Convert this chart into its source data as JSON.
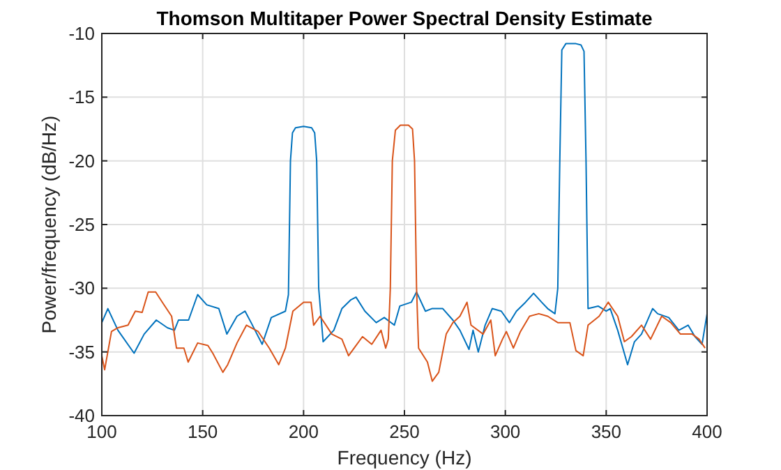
{
  "chart_data": {
    "type": "line",
    "title": "Thomson Multitaper Power Spectral Density Estimate",
    "xlabel": "Frequency (Hz)",
    "ylabel": "Power/frequency (dB/Hz)",
    "xlim": [
      100,
      400
    ],
    "xticks": [
      100,
      150,
      200,
      250,
      300,
      350,
      400
    ],
    "ylim": [
      -40,
      -10
    ],
    "yticks": [
      -40,
      -35,
      -30,
      -25,
      -20,
      -15,
      -10
    ],
    "grid": true,
    "line_style": "solid",
    "series": [
      {
        "color": "#0072bd",
        "x": [
          100,
          103,
          108,
          116,
          121,
          127,
          132.5,
          136,
          138,
          143,
          147.5,
          152,
          158,
          162,
          167,
          171,
          174,
          179.5,
          184,
          191,
          192.5,
          193.5,
          194.5,
          196,
          200,
          204,
          205.5,
          206.5,
          207.5,
          209.7,
          215,
          219,
          223.5,
          226,
          230.4,
          236,
          240,
          245,
          247.7,
          253.4,
          256,
          260.4,
          263.6,
          269,
          274,
          277.5,
          282,
          284,
          286.6,
          290,
          293.5,
          298,
          302,
          305.5,
          310,
          314,
          318,
          321,
          324.6,
          326,
          327,
          328,
          330,
          335,
          337.5,
          339,
          340,
          341,
          346,
          350,
          352,
          355.7,
          360.6,
          364,
          367.5,
          373,
          375.5,
          381,
          386,
          390.6,
          394,
          397.5,
          400
        ],
        "values": [
          -32.7,
          -31.6,
          -33.3,
          -35.1,
          -33.6,
          -32.5,
          -33.1,
          -33.3,
          -32.5,
          -32.5,
          -30.5,
          -31.3,
          -31.6,
          -33.6,
          -32.2,
          -31.8,
          -32.7,
          -34.4,
          -32.3,
          -31.8,
          -30.5,
          -20,
          -17.8,
          -17.4,
          -17.3,
          -17.4,
          -17.8,
          -20,
          -30,
          -34.2,
          -33.3,
          -31.6,
          -30.9,
          -30.7,
          -31.8,
          -32.7,
          -32.3,
          -32.9,
          -31.4,
          -31.1,
          -30.3,
          -31.8,
          -31.6,
          -31.6,
          -32.5,
          -33.3,
          -34.8,
          -33.3,
          -35,
          -32.9,
          -31.6,
          -31.8,
          -32.7,
          -31.8,
          -31.1,
          -30.4,
          -31.1,
          -31.6,
          -32,
          -30,
          -20,
          -11.3,
          -10.8,
          -10.8,
          -10.9,
          -11.4,
          -20,
          -31.6,
          -31.4,
          -31.8,
          -31.6,
          -33.3,
          -36,
          -34.2,
          -33.6,
          -31.6,
          -32,
          -32.3,
          -33.3,
          -32.9,
          -33.8,
          -34.4,
          -32
        ]
      },
      {
        "color": "#d95319",
        "x": [
          100,
          101.4,
          104.8,
          108,
          113,
          116.6,
          120,
          123,
          126.7,
          130,
          134.6,
          137,
          140.7,
          142.8,
          147.5,
          152.6,
          155,
          160,
          162.4,
          167,
          171.7,
          177.5,
          183,
          187.7,
          191,
          194.7,
          200,
          203.7,
          205,
          208.2,
          214,
          219,
          222.3,
          229.2,
          233.8,
          238.4,
          240.7,
          242,
          243,
          244,
          245.5,
          248,
          252,
          254,
          255,
          256,
          257,
          261.4,
          263.8,
          267,
          270.7,
          274,
          277.5,
          281,
          283,
          289,
          292.8,
          295,
          298.6,
          300.5,
          304,
          307.5,
          312,
          316.6,
          321,
          326,
          332,
          335,
          338.6,
          341,
          346.5,
          351,
          355.7,
          359,
          362.5,
          367.5,
          372,
          377.5,
          382,
          386.8,
          392.6,
          396,
          399
        ],
        "values": [
          -35.3,
          -36.4,
          -33.4,
          -33.1,
          -32.9,
          -31.8,
          -31.9,
          -30.3,
          -30.3,
          -31.1,
          -32.2,
          -34.7,
          -34.7,
          -35.8,
          -34.3,
          -34.5,
          -35.1,
          -36.6,
          -36,
          -34.3,
          -32.9,
          -33.4,
          -34.7,
          -36,
          -34.7,
          -31.8,
          -31.1,
          -31.1,
          -32.9,
          -32.2,
          -33.6,
          -34,
          -35.3,
          -33.8,
          -34.4,
          -33.3,
          -34.7,
          -34,
          -30,
          -20,
          -17.6,
          -17.2,
          -17.2,
          -17.5,
          -20,
          -30,
          -34.7,
          -35.8,
          -37.3,
          -36.6,
          -33.6,
          -32.7,
          -32.2,
          -31.1,
          -32.9,
          -33.6,
          -32.5,
          -35.3,
          -34,
          -33.4,
          -34.7,
          -33.4,
          -32.2,
          -32,
          -32.2,
          -32.7,
          -32.7,
          -34.9,
          -35.3,
          -32.9,
          -32.2,
          -31.1,
          -32.2,
          -34.2,
          -33.8,
          -32.9,
          -34,
          -32.2,
          -32.7,
          -33.6,
          -33.6,
          -34,
          -34.7
        ]
      }
    ]
  }
}
